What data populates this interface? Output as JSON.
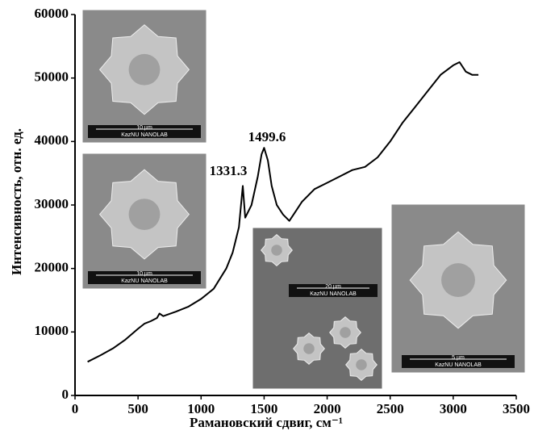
{
  "chart_data": {
    "type": "line",
    "x_label": "Рамановский сдвиг, см⁻¹",
    "y_label": "Интенсивность, отн. ед.",
    "annotations": [
      "1331.3",
      "1499.6"
    ],
    "x": [
      100,
      200,
      300,
      400,
      500,
      550,
      600,
      650,
      670,
      700,
      800,
      900,
      1000,
      1100,
      1200,
      1250,
      1300,
      1331,
      1350,
      1400,
      1450,
      1480,
      1500,
      1530,
      1560,
      1600,
      1650,
      1700,
      1750,
      1800,
      1900,
      2000,
      2100,
      2200,
      2300,
      2400,
      2500,
      2600,
      2700,
      2800,
      2900,
      3000,
      3050,
      3100,
      3150,
      3200
    ],
    "values": [
      5300,
      6300,
      7400,
      8800,
      10500,
      11300,
      11700,
      12200,
      12900,
      12500,
      13200,
      14000,
      15200,
      16800,
      20000,
      22500,
      26500,
      33000,
      28000,
      30000,
      34500,
      38000,
      39000,
      37000,
      33000,
      30000,
      28500,
      27500,
      29000,
      30500,
      32500,
      33500,
      34500,
      35500,
      36000,
      37500,
      40000,
      43000,
      45500,
      48000,
      50500,
      52000,
      52500,
      51000,
      50500,
      50500
    ],
    "color": "#000000",
    "xlim": [
      0,
      3500
    ],
    "xticks": [
      0,
      500,
      1000,
      1500,
      2000,
      2500,
      3000,
      3500
    ],
    "ylim": [
      0,
      60000
    ],
    "yticks": [
      0,
      10000,
      20000,
      30000,
      40000,
      50000,
      60000
    ]
  },
  "insets": [
    {
      "scale": "10 µm",
      "lab": "KazNU NANOLAB"
    },
    {
      "scale": "10 µm",
      "lab": "KazNU NANOLAB"
    },
    {
      "scale": "20 µm",
      "lab": "KazNU NANOLAB"
    },
    {
      "scale": "5 µm",
      "lab": "KazNU NANOLAB"
    }
  ]
}
